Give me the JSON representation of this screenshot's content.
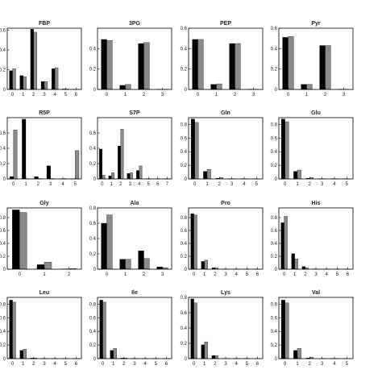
{
  "colors": {
    "series_a": "#000000",
    "series_b": "#8a8a8a"
  },
  "chart_data": [
    {
      "type": "bar",
      "title": "FBP",
      "categories": [
        "0",
        "1",
        "2",
        "3",
        "4",
        "5",
        "6"
      ],
      "yticks": [
        0,
        0.2,
        0.4,
        0.6
      ],
      "ylim": [
        0,
        0.62
      ],
      "series": [
        {
          "values": [
            0.19,
            0.14,
            0.61,
            0.08,
            0.21,
            0.005,
            0.003
          ]
        },
        {
          "values": [
            0.21,
            0.13,
            0.58,
            0.08,
            0.22,
            0.005,
            0.003
          ]
        }
      ]
    },
    {
      "type": "bar",
      "title": "3PG",
      "categories": [
        "0",
        "1",
        "2",
        "3"
      ],
      "yticks": [
        0,
        0.2,
        0.4
      ],
      "ylim": [
        0,
        0.6
      ],
      "series": [
        {
          "values": [
            0.49,
            0.04,
            0.45,
            0.003
          ]
        },
        {
          "values": [
            0.48,
            0.05,
            0.46,
            0.003
          ]
        }
      ]
    },
    {
      "type": "bar",
      "title": "PEP",
      "categories": [
        "0",
        "1",
        "2",
        "3"
      ],
      "yticks": [
        0,
        0.2,
        0.4,
        0.6
      ],
      "ylim": [
        0,
        0.6
      ],
      "series": [
        {
          "values": [
            0.49,
            0.05,
            0.45,
            0.003
          ]
        },
        {
          "values": [
            0.49,
            0.055,
            0.45,
            0.003
          ]
        }
      ]
    },
    {
      "type": "bar",
      "title": "Pyr",
      "categories": [
        "0",
        "1",
        "2",
        "3"
      ],
      "yticks": [
        0,
        0.2,
        0.4,
        0.6
      ],
      "ylim": [
        0,
        0.6
      ],
      "series": [
        {
          "values": [
            0.51,
            0.05,
            0.43,
            0.003
          ]
        },
        {
          "values": [
            0.52,
            0.05,
            0.43,
            0.003
          ]
        }
      ]
    },
    {
      "type": "bar",
      "title": "R5P",
      "categories": [
        "0",
        "1",
        "2",
        "3",
        "4",
        "5"
      ],
      "yticks": [
        0,
        0.2,
        0.4,
        0.6
      ],
      "ylim": [
        0,
        0.8
      ],
      "series": [
        {
          "values": [
            0.03,
            0.78,
            0.03,
            0.17,
            0.002,
            0.002
          ]
        },
        {
          "values": [
            0.64,
            0.002,
            0.005,
            0.005,
            0.005,
            0.37
          ]
        }
      ]
    },
    {
      "type": "bar",
      "title": "S7P",
      "categories": [
        "0",
        "1",
        "2",
        "3",
        "4",
        "5",
        "6",
        "7"
      ],
      "yticks": [
        0,
        0.2,
        0.4,
        0.6
      ],
      "ylim": [
        0,
        0.8
      ],
      "series": [
        {
          "values": [
            0.39,
            0.04,
            0.43,
            0.07,
            0.11,
            0.003,
            0.003,
            0.003
          ]
        },
        {
          "values": [
            0.05,
            0.08,
            0.65,
            0.08,
            0.17,
            0.003,
            0.003,
            0.003
          ]
        }
      ]
    },
    {
      "type": "bar",
      "title": "Gln",
      "categories": [
        "0",
        "1",
        "2",
        "3",
        "4",
        "5"
      ],
      "yticks": [
        0,
        0.2,
        0.4,
        0.6,
        0.8
      ],
      "ylim": [
        0,
        0.9
      ],
      "series": [
        {
          "values": [
            0.88,
            0.11,
            0.01,
            0.002,
            0.002,
            0.002
          ]
        },
        {
          "values": [
            0.83,
            0.14,
            0.02,
            0.002,
            0.002,
            0.002
          ]
        }
      ]
    },
    {
      "type": "bar",
      "title": "Glu",
      "categories": [
        "0",
        "1",
        "2",
        "3",
        "4",
        "5"
      ],
      "yticks": [
        0,
        0.2,
        0.4,
        0.6,
        0.8
      ],
      "ylim": [
        0,
        0.9
      ],
      "series": [
        {
          "values": [
            0.88,
            0.11,
            0.01,
            0.002,
            0.002,
            0.002
          ]
        },
        {
          "values": [
            0.84,
            0.13,
            0.02,
            0.002,
            0.002,
            0.002
          ]
        }
      ]
    },
    {
      "type": "bar",
      "title": "Gly",
      "categories": [
        "0",
        "1",
        "2"
      ],
      "yticks": [
        0,
        0.2,
        0.4,
        0.6,
        0.8
      ],
      "ylim": [
        0,
        0.95
      ],
      "series": [
        {
          "values": [
            0.92,
            0.07,
            0.005
          ]
        },
        {
          "values": [
            0.88,
            0.11,
            0.008
          ]
        }
      ]
    },
    {
      "type": "bar",
      "title": "Ala",
      "categories": [
        "0",
        "1",
        "2",
        "3"
      ],
      "yticks": [
        0,
        0.2,
        0.4,
        0.6,
        0.8
      ],
      "ylim": [
        0,
        0.8
      ],
      "series": [
        {
          "values": [
            0.6,
            0.13,
            0.24,
            0.03
          ]
        },
        {
          "values": [
            0.71,
            0.13,
            0.14,
            0.02
          ]
        }
      ]
    },
    {
      "type": "bar",
      "title": "Pro",
      "categories": [
        "0",
        "1",
        "2",
        "3",
        "4",
        "5",
        "6"
      ],
      "yticks": [
        0,
        0.2,
        0.4,
        0.6,
        0.8
      ],
      "ylim": [
        0,
        0.95
      ],
      "series": [
        {
          "values": [
            0.86,
            0.12,
            0.02,
            0.002,
            0.002,
            0.002,
            0.002
          ]
        },
        {
          "values": [
            0.84,
            0.14,
            0.02,
            0.002,
            0.002,
            0.002,
            0.002
          ]
        }
      ]
    },
    {
      "type": "bar",
      "title": "His",
      "categories": [
        "0",
        "1",
        "2",
        "3",
        "4",
        "5",
        "6"
      ],
      "yticks": [
        0,
        0.2,
        0.4,
        0.6,
        0.8
      ],
      "ylim": [
        0,
        0.95
      ],
      "series": [
        {
          "values": [
            0.72,
            0.24,
            0.04,
            0.005,
            0.002,
            0.002,
            0.002
          ]
        },
        {
          "values": [
            0.82,
            0.16,
            0.02,
            0.003,
            0.002,
            0.002,
            0.002
          ]
        }
      ]
    },
    {
      "type": "bar",
      "title": "Leu",
      "categories": [
        "0",
        "1",
        "2",
        "3",
        "4",
        "5",
        "6"
      ],
      "yticks": [
        0,
        0.2,
        0.4,
        0.6,
        0.8
      ],
      "ylim": [
        0,
        0.9
      ],
      "series": [
        {
          "values": [
            0.86,
            0.12,
            0.01,
            0.002,
            0.002,
            0.002,
            0.002
          ]
        },
        {
          "values": [
            0.83,
            0.14,
            0.01,
            0.002,
            0.002,
            0.002,
            0.002
          ]
        }
      ]
    },
    {
      "type": "bar",
      "title": "Ile",
      "categories": [
        "0",
        "1",
        "2",
        "3",
        "4",
        "5",
        "6"
      ],
      "yticks": [
        0,
        0.2,
        0.4,
        0.6,
        0.8
      ],
      "ylim": [
        0,
        0.9
      ],
      "series": [
        {
          "values": [
            0.86,
            0.12,
            0.01,
            0.002,
            0.002,
            0.002,
            0.002
          ]
        },
        {
          "values": [
            0.83,
            0.15,
            0.01,
            0.002,
            0.002,
            0.002,
            0.002
          ]
        }
      ]
    },
    {
      "type": "bar",
      "title": "Lys",
      "categories": [
        "0",
        "1",
        "2",
        "3",
        "4",
        "5",
        "6"
      ],
      "yticks": [
        0,
        0.2,
        0.4,
        0.6,
        0.8
      ],
      "ylim": [
        0,
        0.8
      ],
      "series": [
        {
          "values": [
            0.78,
            0.18,
            0.04,
            0.002,
            0.002,
            0.002,
            0.002
          ]
        },
        {
          "values": [
            0.73,
            0.22,
            0.04,
            0.002,
            0.002,
            0.002,
            0.002
          ]
        }
      ]
    },
    {
      "type": "bar",
      "title": "Val",
      "categories": [
        "0",
        "1",
        "2",
        "3",
        "4",
        "5"
      ],
      "yticks": [
        0,
        0.2,
        0.4,
        0.6,
        0.8
      ],
      "ylim": [
        0,
        0.9
      ],
      "series": [
        {
          "values": [
            0.86,
            0.12,
            0.01,
            0.002,
            0.002,
            0.002
          ]
        },
        {
          "values": [
            0.82,
            0.15,
            0.02,
            0.002,
            0.002,
            0.002
          ]
        }
      ]
    }
  ]
}
